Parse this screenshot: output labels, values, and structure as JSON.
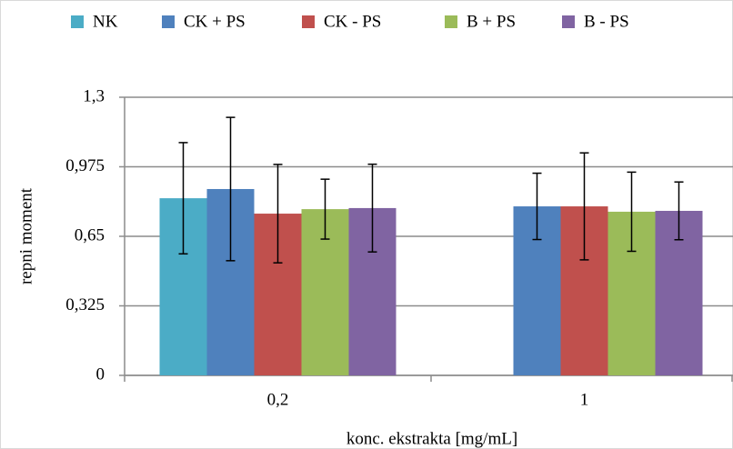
{
  "chart_data": {
    "type": "bar",
    "x_label": "konc. ekstrakta [mg/mL]",
    "y_label": "repni moment",
    "categories": [
      "0,2",
      "1"
    ],
    "series": [
      {
        "name": "NK",
        "color": "#4bacc6",
        "values": [
          0.828,
          null
        ],
        "errors": [
          0.26,
          null
        ]
      },
      {
        "name": "CK + PS",
        "color": "#4f81bd",
        "values": [
          0.871,
          0.79
        ],
        "errors": [
          0.335,
          0.155
        ]
      },
      {
        "name": "CK - PS",
        "color": "#c0504d",
        "values": [
          0.756,
          0.79
        ],
        "errors": [
          0.23,
          0.25
        ]
      },
      {
        "name": "B + PS",
        "color": "#9bbb59",
        "values": [
          0.777,
          0.765
        ],
        "errors": [
          0.14,
          0.185
        ]
      },
      {
        "name": "B - PS",
        "color": "#8064a2",
        "values": [
          0.782,
          0.769
        ],
        "errors": [
          0.205,
          0.135
        ]
      }
    ],
    "ylim": [
      0,
      1.3
    ],
    "yticks": [
      0,
      {
        "value": 0.325,
        "label": "0,325"
      },
      {
        "value": 0.65,
        "label": "0,65"
      },
      {
        "value": 0.975,
        "label": "0,975"
      },
      {
        "value": 1.3,
        "label": "1,3"
      }
    ],
    "grid": true,
    "legend": "top"
  }
}
